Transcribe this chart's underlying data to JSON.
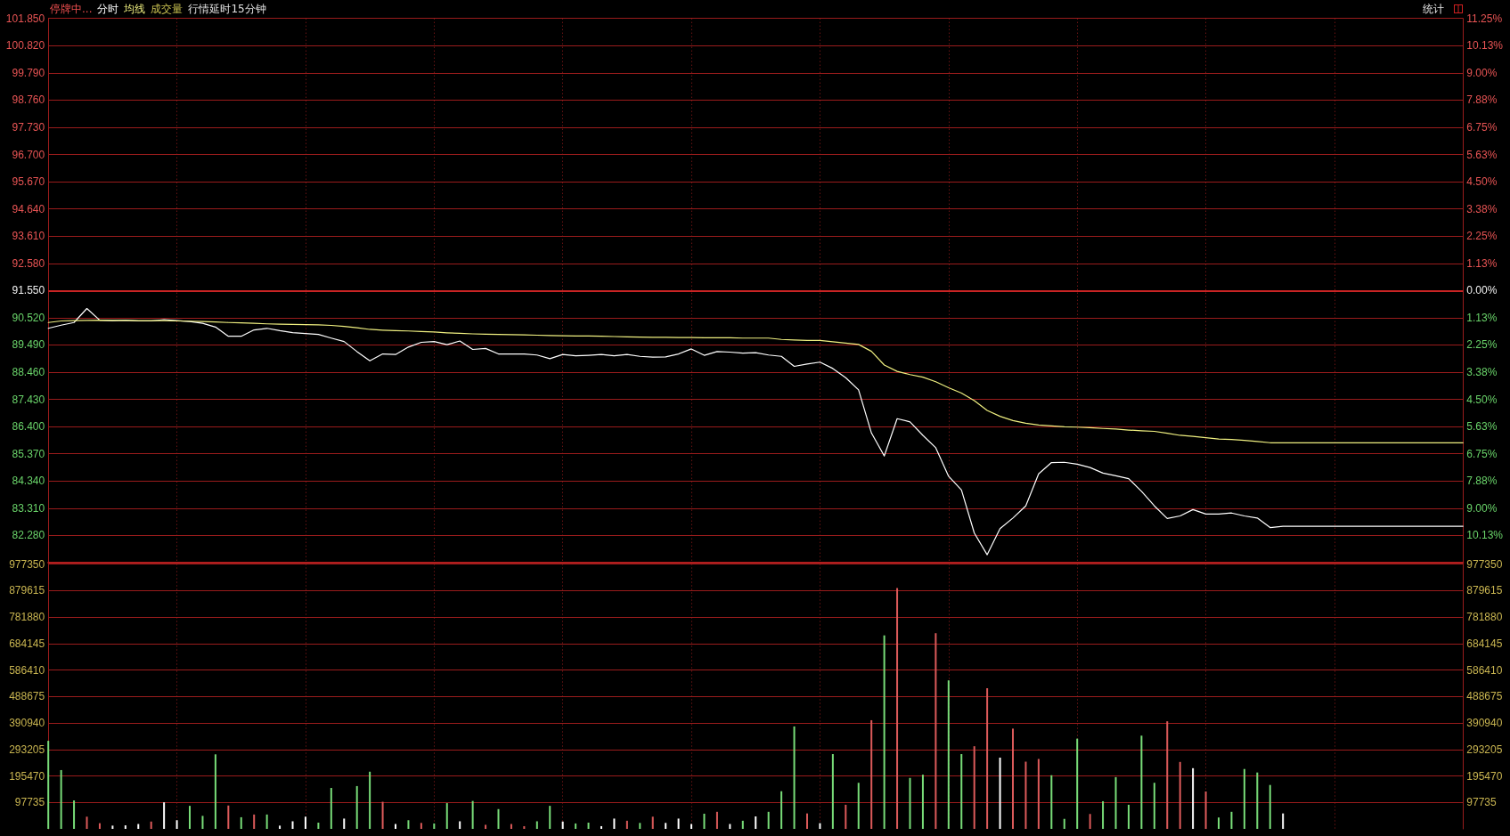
{
  "chart_data": [
    {
      "type": "line",
      "categories": [
        null,
        null,
        null,
        null,
        null,
        null,
        null,
        null,
        null,
        null,
        null,
        null,
        null,
        null,
        null,
        null,
        null,
        null,
        null,
        null,
        null,
        null,
        null,
        null,
        null,
        null,
        null,
        null,
        null,
        null,
        null,
        null,
        null,
        null,
        null,
        null,
        null,
        null,
        null,
        null,
        null,
        null,
        null,
        null,
        null,
        null,
        null,
        null,
        null,
        null,
        null,
        null,
        null,
        null,
        null,
        null,
        null,
        null,
        null,
        null,
        null,
        null,
        null,
        null,
        null,
        null,
        null,
        null,
        null,
        null,
        null,
        null,
        null,
        null,
        null,
        null,
        null,
        null,
        null,
        null,
        null,
        null,
        null,
        null,
        null,
        null,
        null,
        null,
        null,
        null,
        null,
        null,
        null,
        null,
        null,
        null,
        null,
        null,
        null,
        null,
        null,
        null,
        null,
        null,
        null,
        null,
        null,
        null,
        null,
        null,
        null
      ],
      "series": [
        {
          "name": "分时",
          "color": "#ffffff",
          "values": [
            90.12,
            90.24,
            90.34,
            90.87,
            90.43,
            90.41,
            90.43,
            90.4,
            90.4,
            90.45,
            90.41,
            90.38,
            90.31,
            90.17,
            89.82,
            89.82,
            90.06,
            90.12,
            90.03,
            89.96,
            89.92,
            89.89,
            89.75,
            89.62,
            89.24,
            88.89,
            89.15,
            89.13,
            89.41,
            89.59,
            89.62,
            89.5,
            89.64,
            89.32,
            89.36,
            89.15,
            89.15,
            89.15,
            89.11,
            88.97,
            89.13,
            89.08,
            89.1,
            89.13,
            89.08,
            89.13,
            89.06,
            89.03,
            89.04,
            89.15,
            89.34,
            89.1,
            89.24,
            89.22,
            89.18,
            89.2,
            89.11,
            89.06,
            88.68,
            88.77,
            88.84,
            88.6,
            88.25,
            87.79,
            86.16,
            85.29,
            86.7,
            86.58,
            86.07,
            85.6,
            84.52,
            84.0,
            82.37,
            81.55,
            82.54,
            82.94,
            83.4,
            84.61,
            85.04,
            85.05,
            84.98,
            84.85,
            84.64,
            84.54,
            84.43,
            83.95,
            83.4,
            82.92,
            83.02,
            83.26,
            83.09,
            83.09,
            83.13,
            83.02,
            82.94,
            82.58,
            82.63,
            82.63,
            82.63,
            82.63,
            82.63,
            82.63,
            82.63,
            82.63,
            82.63,
            82.63,
            82.63,
            82.63,
            82.63,
            82.63,
            82.63
          ]
        },
        {
          "name": "均线",
          "color": "#f0f080",
          "values": [
            90.34,
            90.4,
            90.41,
            90.42,
            90.43,
            90.42,
            90.42,
            90.41,
            90.41,
            90.41,
            90.4,
            90.39,
            90.38,
            90.36,
            90.34,
            90.33,
            90.31,
            90.29,
            90.28,
            90.27,
            90.26,
            90.25,
            90.23,
            90.19,
            90.14,
            90.08,
            90.05,
            90.03,
            90.02,
            90.0,
            89.98,
            89.95,
            89.93,
            89.91,
            89.9,
            89.89,
            89.88,
            89.87,
            89.86,
            89.85,
            89.84,
            89.83,
            89.83,
            89.82,
            89.81,
            89.8,
            89.79,
            89.78,
            89.78,
            89.77,
            89.77,
            89.76,
            89.76,
            89.76,
            89.75,
            89.75,
            89.75,
            89.7,
            89.68,
            89.66,
            89.66,
            89.61,
            89.56,
            89.51,
            89.25,
            88.73,
            88.49,
            88.37,
            88.27,
            88.1,
            87.87,
            87.67,
            87.38,
            87.01,
            86.79,
            86.63,
            86.53,
            86.46,
            86.43,
            86.39,
            86.38,
            86.36,
            86.33,
            86.31,
            86.27,
            86.24,
            86.22,
            86.15,
            86.07,
            86.03,
            85.98,
            85.93,
            85.91,
            85.88,
            85.84,
            85.79,
            85.79,
            85.79,
            85.79,
            85.79,
            85.79,
            85.79,
            85.79,
            85.79,
            85.79,
            85.79,
            85.79,
            85.79,
            85.79,
            85.79,
            85.79
          ]
        }
      ],
      "ylim": [
        81.25,
        101.85
      ],
      "yticks": [
        {
          "value": 82.28,
          "label": "82.280"
        },
        {
          "value": 83.31,
          "label": "83.310"
        },
        {
          "value": 84.34,
          "label": "84.340"
        },
        {
          "value": 85.37,
          "label": "85.370"
        },
        {
          "value": 86.4,
          "label": "86.400"
        },
        {
          "value": 87.43,
          "label": "87.430"
        },
        {
          "value": 88.46,
          "label": "88.460"
        },
        {
          "value": 89.49,
          "label": "89.490"
        },
        {
          "value": 90.52,
          "label": "90.520"
        },
        {
          "value": 91.55,
          "label": "91.550"
        },
        {
          "value": 92.58,
          "label": "92.580"
        },
        {
          "value": 93.61,
          "label": "93.610"
        },
        {
          "value": 94.64,
          "label": "94.640"
        },
        {
          "value": 95.67,
          "label": "95.670"
        },
        {
          "value": 96.7,
          "label": "96.700"
        },
        {
          "value": 97.73,
          "label": "97.730"
        },
        {
          "value": 98.76,
          "label": "98.760"
        },
        {
          "value": 99.79,
          "label": "99.790"
        },
        {
          "value": 100.82,
          "label": "100.820"
        },
        {
          "value": 101.85,
          "label": "101.850"
        }
      ],
      "y2lim": [
        -11.25,
        11.25
      ],
      "y2ticks": [
        {
          "value": -10.125,
          "label": "10.13%"
        },
        {
          "value": -9,
          "label": "9.00%"
        },
        {
          "value": -7.875,
          "label": "7.88%"
        },
        {
          "value": -6.75,
          "label": "6.75%"
        },
        {
          "value": -5.625,
          "label": "5.63%"
        },
        {
          "value": -4.5,
          "label": "4.50%"
        },
        {
          "value": -3.375,
          "label": "3.38%"
        },
        {
          "value": -2.25,
          "label": "2.25%"
        },
        {
          "value": -1.125,
          "label": "1.13%"
        },
        {
          "value": 0,
          "label": "0.00%"
        },
        {
          "value": 1.125,
          "label": "1.13%"
        },
        {
          "value": 2.25,
          "label": "2.25%"
        },
        {
          "value": 3.375,
          "label": "3.38%"
        },
        {
          "value": 4.5,
          "label": "4.50%"
        },
        {
          "value": 5.625,
          "label": "5.63%"
        },
        {
          "value": 6.75,
          "label": "6.75%"
        },
        {
          "value": 7.875,
          "label": "7.88%"
        },
        {
          "value": 9,
          "label": "9.00%"
        },
        {
          "value": 10.125,
          "label": "10.13%"
        },
        {
          "value": 11.25,
          "label": "11.25%"
        }
      ],
      "ref_lines": [
        {
          "axis": "y",
          "value": 91.55,
          "color": "#c82424"
        }
      ],
      "annotations": [
        "停牌中...",
        "成交量",
        "行情延时15分钟",
        "统计"
      ],
      "legend": "top left",
      "grid": true,
      "marker": "none"
    },
    {
      "type": "bar",
      "categories": [
        null,
        null,
        null,
        null,
        null,
        null,
        null,
        null,
        null,
        null,
        null,
        null,
        null,
        null,
        null,
        null,
        null,
        null,
        null,
        null,
        null,
        null,
        null,
        null,
        null,
        null,
        null,
        null,
        null,
        null,
        null,
        null,
        null,
        null,
        null,
        null,
        null,
        null,
        null,
        null,
        null,
        null,
        null,
        null,
        null,
        null,
        null,
        null,
        null,
        null,
        null,
        null,
        null,
        null,
        null,
        null,
        null,
        null,
        null,
        null,
        null,
        null,
        null,
        null,
        null,
        null,
        null,
        null,
        null,
        null,
        null,
        null,
        null,
        null,
        null,
        null,
        null,
        null,
        null,
        null,
        null,
        null,
        null,
        null,
        null,
        null,
        null,
        null,
        null,
        null,
        null,
        null,
        null,
        null,
        null,
        null,
        null,
        null,
        null,
        null,
        null,
        null,
        null,
        null,
        null,
        null,
        null,
        null,
        null,
        null,
        null
      ],
      "values": [
        325000,
        217000,
        105000,
        45000,
        21000,
        12000,
        13000,
        18000,
        27000,
        98000,
        32000,
        85000,
        48000,
        275000,
        86000,
        43000,
        53000,
        53000,
        12000,
        28000,
        45000,
        23000,
        151000,
        38000,
        158000,
        211000,
        100000,
        18000,
        32000,
        22000,
        20000,
        95000,
        28000,
        103000,
        15000,
        73000,
        18000,
        10000,
        28000,
        85000,
        27000,
        20000,
        23000,
        10000,
        38000,
        30000,
        22000,
        45000,
        22000,
        38000,
        18000,
        56000,
        63000,
        18000,
        30000,
        46000,
        63000,
        139000,
        378000,
        57000,
        21000,
        276000,
        89000,
        170000,
        401000,
        714000,
        889000,
        188000,
        200000,
        722000,
        548000,
        276000,
        305000,
        519000,
        263000,
        370000,
        248000,
        258000,
        198000,
        37000,
        333000,
        55000,
        102000,
        191000,
        89000,
        344000,
        170000,
        397000,
        247000,
        224000,
        138000,
        42000,
        63000,
        221000,
        208000,
        162000,
        57000,
        null,
        null,
        null,
        null,
        null,
        null,
        null,
        null,
        null,
        null,
        null,
        null,
        null,
        null
      ],
      "colors": [
        "#78dc78",
        "#78dc78",
        "#78dc78",
        "#dc5a5a",
        "#dc5a5a",
        "#ffffff",
        "#ffffff",
        "#ffffff",
        "#dc5a5a",
        "#ffffff",
        "#ffffff",
        "#78dc78",
        "#78dc78",
        "#78dc78",
        "#dc5a5a",
        "#78dc78",
        "#dc5a5a",
        "#78dc78",
        "#ffffff",
        "#ffffff",
        "#ffffff",
        "#78dc78",
        "#78dc78",
        "#ffffff",
        "#78dc78",
        "#78dc78",
        "#dc5a5a",
        "#ffffff",
        "#78dc78",
        "#dc5a5a",
        "#78dc78",
        "#78dc78",
        "#ffffff",
        "#78dc78",
        "#dc5a5a",
        "#78dc78",
        "#dc5a5a",
        "#dc5a5a",
        "#78dc78",
        "#78dc78",
        "#ffffff",
        "#78dc78",
        "#78dc78",
        "#ffffff",
        "#ffffff",
        "#dc5a5a",
        "#78dc78",
        "#dc5a5a",
        "#ffffff",
        "#ffffff",
        "#ffffff",
        "#78dc78",
        "#dc5a5a",
        "#ffffff",
        "#78dc78",
        "#ffffff",
        "#78dc78",
        "#78dc78",
        "#78dc78",
        "#dc5a5a",
        "#ffffff",
        "#78dc78",
        "#dc5a5a",
        "#78dc78",
        "#dc5a5a",
        "#78dc78",
        "#dc5a5a",
        "#78dc78",
        "#78dc78",
        "#dc5a5a",
        "#78dc78",
        "#78dc78",
        "#dc5a5a",
        "#dc5a5a",
        "#ffffff",
        "#dc5a5a",
        "#dc5a5a",
        "#dc5a5a",
        "#78dc78",
        "#78dc78",
        "#78dc78",
        "#dc5a5a",
        "#78dc78",
        "#78dc78",
        "#78dc78",
        "#78dc78",
        "#78dc78",
        "#dc5a5a",
        "#dc5a5a",
        "#ffffff",
        "#dc5a5a",
        "#78dc78",
        "#78dc78",
        "#78dc78",
        "#78dc78",
        "#78dc78",
        "#ffffff",
        null,
        null,
        null,
        null,
        null,
        null,
        null,
        null,
        null,
        null,
        null,
        null,
        null,
        null
      ],
      "ylim": [
        0,
        977350
      ],
      "yticks": [
        97735,
        195470,
        293205,
        390940,
        488675,
        586410,
        684145,
        781880,
        879615,
        977350
      ],
      "y2lim": [
        0,
        977350
      ],
      "y2ticks": [
        97735,
        195470,
        293205,
        390940,
        488675,
        586410,
        684145,
        781880,
        879615,
        977350
      ],
      "grid": true
    }
  ]
}
